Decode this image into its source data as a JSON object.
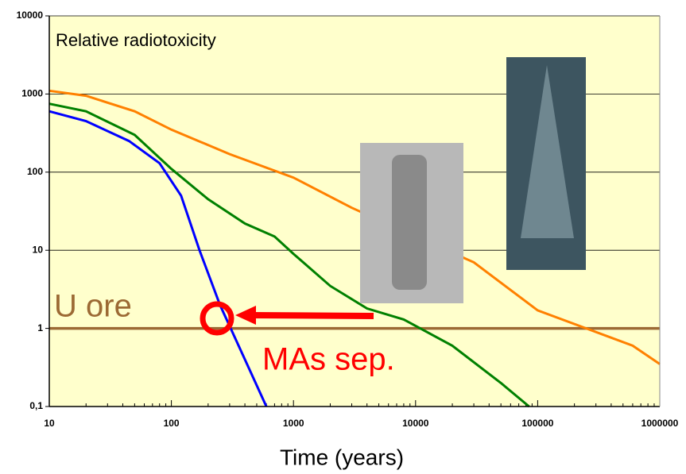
{
  "chart_data": {
    "type": "line",
    "title": "Relative radiotoxicity",
    "x_label": "Time (years)",
    "log_x": true,
    "log_y": true,
    "grid": true,
    "background": "#ffffcc",
    "xlim": [
      10,
      1000000
    ],
    "ylim": [
      0.1,
      10000
    ],
    "xticks": [
      10,
      100,
      1000,
      10000,
      100000,
      1000000
    ],
    "yticks": [
      {
        "value": 0.1,
        "label": "0,1"
      },
      1,
      10,
      100,
      1000,
      10000
    ],
    "series": [
      {
        "color": "#ff8000",
        "x": [
          10,
          20,
          50,
          100,
          300,
          1000,
          3000,
          10000,
          30000,
          100000,
          250000,
          600000,
          1000000
        ],
        "values": [
          1100,
          950,
          600,
          350,
          170,
          85,
          35,
          15,
          7,
          1.7,
          1.0,
          0.6,
          0.35
        ]
      },
      {
        "color": "#008000",
        "x": [
          10,
          20,
          50,
          100,
          200,
          400,
          700,
          1000,
          2000,
          4000,
          8000,
          20000,
          50000,
          85000
        ],
        "values": [
          750,
          600,
          300,
          110,
          45,
          22,
          15,
          9,
          3.5,
          1.8,
          1.3,
          0.6,
          0.2,
          0.1
        ]
      },
      {
        "color": "#0000ff",
        "x": [
          10,
          20,
          45,
          80,
          120,
          170,
          250,
          400,
          600
        ],
        "values": [
          600,
          450,
          250,
          130,
          50,
          10,
          2,
          0.4,
          0.1
        ]
      }
    ],
    "reference_line": {
      "value": 1,
      "label": "U ore",
      "color": "#9c6a34"
    },
    "annotation": {
      "text": "MAs sep.",
      "color": "#ff0000"
    }
  }
}
